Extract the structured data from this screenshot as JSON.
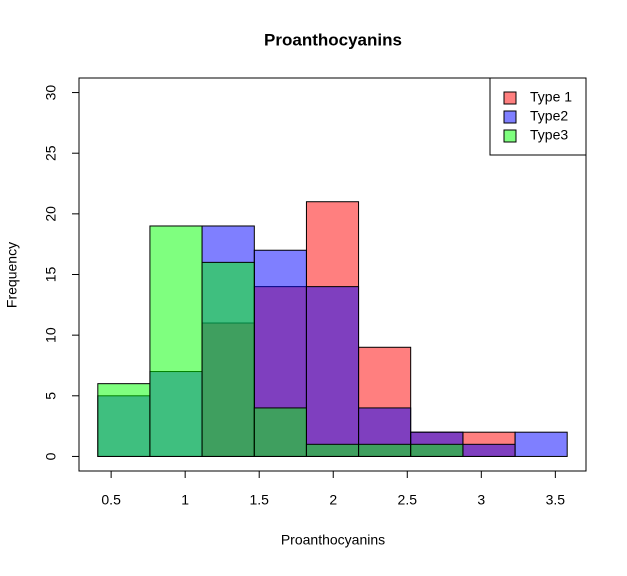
{
  "chart_data": {
    "type": "histogram",
    "title": "Proanthocyanins",
    "x_label": "Proanthocyanins",
    "y_label": "Frequency",
    "bins": [
      0.41,
      0.762,
      1.114,
      1.467,
      1.819,
      2.171,
      2.523,
      2.876,
      3.228,
      3.58
    ],
    "series": [
      {
        "name": "Type 1",
        "color": "rgba(255,0,0,0.5)",
        "values": [
          0,
          0,
          11,
          14,
          21,
          9,
          2,
          2,
          0
        ]
      },
      {
        "name": "Type2",
        "color": "rgba(0,0,255,0.5)",
        "values": [
          5,
          7,
          19,
          17,
          14,
          4,
          2,
          1,
          2
        ]
      },
      {
        "name": "Type3",
        "color": "rgba(0,255,0,0.5)",
        "values": [
          6,
          19,
          16,
          4,
          1,
          1,
          1,
          0,
          0
        ]
      }
    ],
    "xlim": [
      0.283,
      3.707
    ],
    "xticks": [
      0.5,
      1.0,
      1.5,
      2.0,
      2.5,
      3.0,
      3.5
    ],
    "ylim": [
      -1.2,
      31.2
    ],
    "yticks": [
      0,
      5,
      10,
      15,
      20,
      25,
      30
    ],
    "legend": "topright"
  }
}
